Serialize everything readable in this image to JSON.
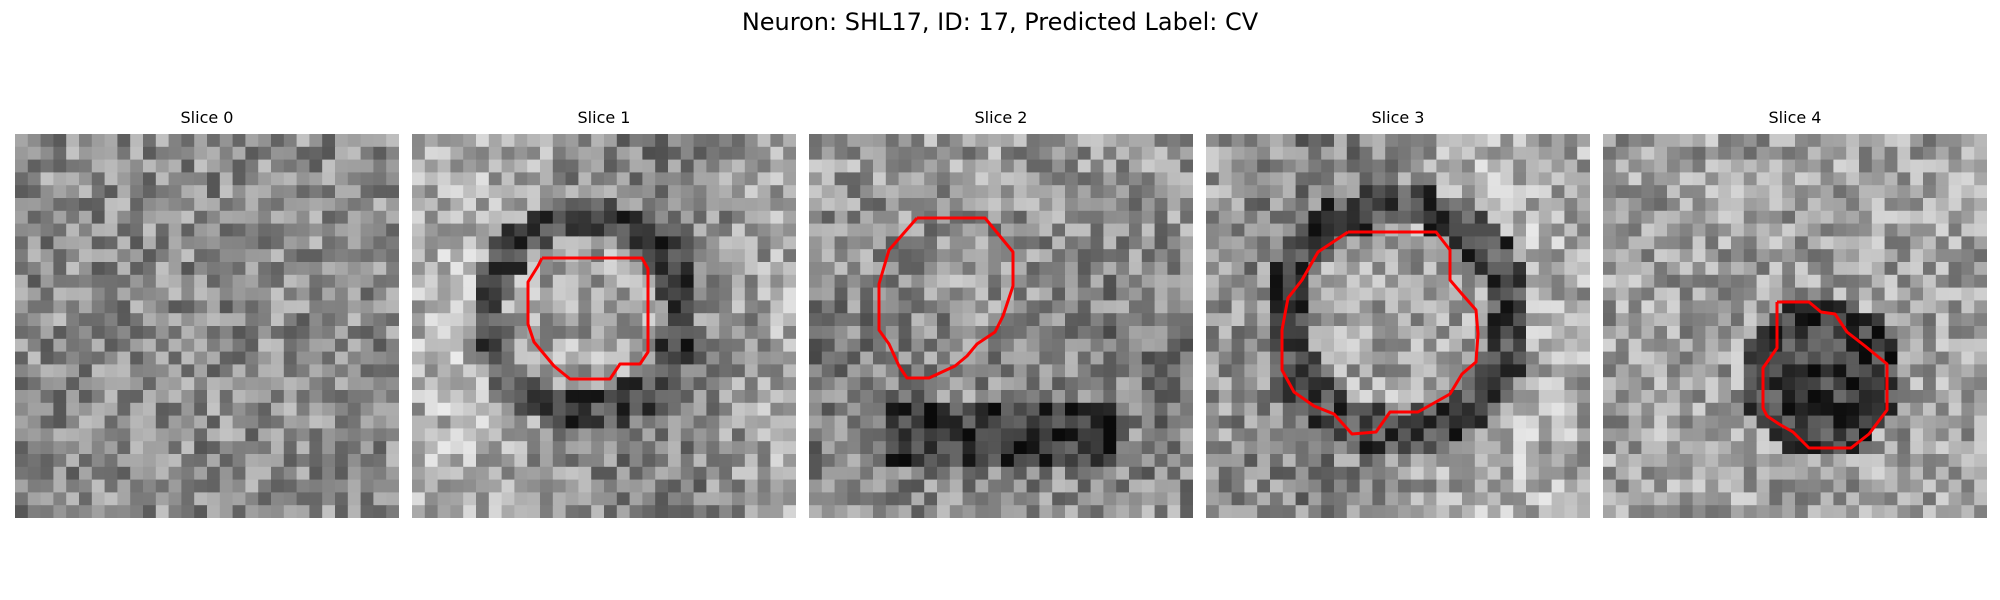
{
  "figure": {
    "title": "Neuron: SHL17, ID: 17, Predicted Label: CV",
    "contour_color": "#ff0000"
  },
  "panels": [
    {
      "label": "Slice 0",
      "has_contour": false
    },
    {
      "label": "Slice 1",
      "has_contour": true
    },
    {
      "label": "Slice 2",
      "has_contour": true
    },
    {
      "label": "Slice 3",
      "has_contour": true
    },
    {
      "label": "Slice 4",
      "has_contour": true
    }
  ]
}
